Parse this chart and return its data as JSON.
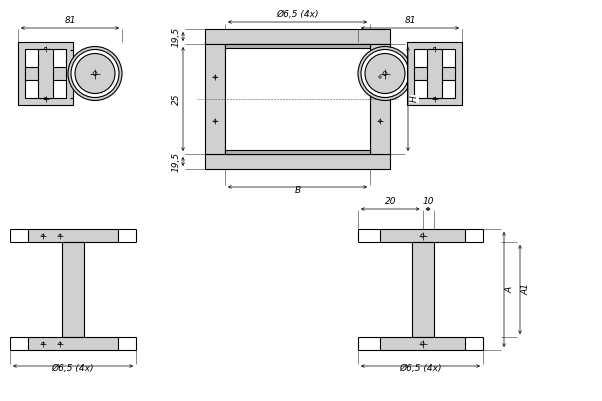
{
  "bg_color": "#ffffff",
  "lc": "#000000",
  "fl": "#d0d0d0",
  "fm": "#b0b0b0",
  "dim_fs": 6.5,
  "ann": {
    "81a": "81",
    "81b": "81",
    "19_5a": "19,5",
    "25": "25",
    "19_5b": "19,5",
    "hole_top": "Ø6,5 (4x)",
    "H": "H",
    "B": "B",
    "20": "20",
    "10": "10",
    "A": "A",
    "A1": "A1",
    "hole_bl": "Ø6,5 (4x)",
    "hole_br": "Ø6,5 (4x)"
  }
}
